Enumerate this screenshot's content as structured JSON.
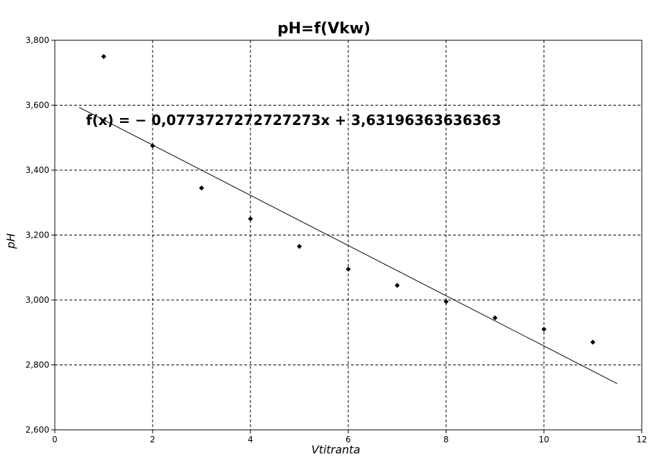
{
  "chart_data": {
    "type": "scatter",
    "title": "pH=f(Vkw)",
    "xlabel": "Vtitranta",
    "ylabel": "pH",
    "xlim": [
      0,
      12
    ],
    "ylim": [
      2.6,
      3.8
    ],
    "x_ticks": [
      0,
      2,
      4,
      6,
      8,
      10,
      12
    ],
    "y_ticks": [
      2.6,
      2.8,
      3.0,
      3.2,
      3.4,
      3.6,
      3.8
    ],
    "x_tick_labels": [
      "0",
      "2",
      "4",
      "6",
      "8",
      "10",
      "12"
    ],
    "y_tick_labels": [
      "2,600",
      "2,800",
      "3,000",
      "3,200",
      "3,400",
      "3,600",
      "3,800"
    ],
    "grid": true,
    "marker": "diamond",
    "series": [
      {
        "x": [
          1,
          2,
          3,
          4,
          5,
          6,
          7,
          8,
          9,
          10,
          11
        ],
        "y": [
          3.75,
          3.475,
          3.345,
          3.25,
          3.165,
          3.095,
          3.045,
          2.995,
          2.945,
          2.91,
          2.87
        ]
      }
    ],
    "trendline": {
      "slope": -0.0773727272727273,
      "intercept": 3.63196363636363,
      "x_range": [
        0.5,
        11.5
      ],
      "equation": "f(x) = − 0,0773727272727273x + 3,63196363636363"
    },
    "colors": {
      "markers": "#000000",
      "trendline": "#000000",
      "grid": "#000000"
    }
  }
}
